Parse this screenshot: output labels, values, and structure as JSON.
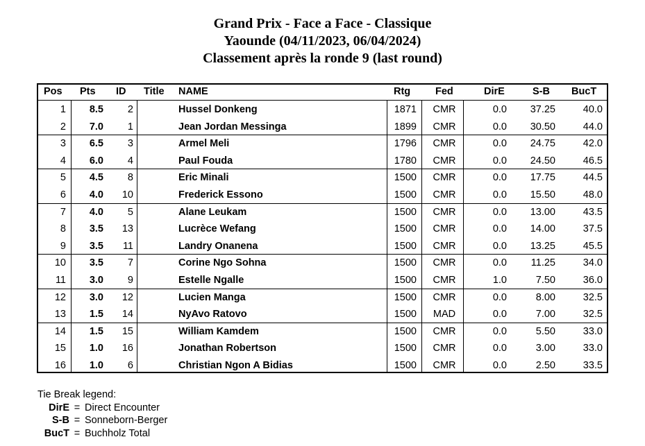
{
  "title_lines": [
    "Grand Prix - Face a Face - Classique",
    "Yaounde (04/11/2023, 06/04/2024)",
    "Classement après la ronde 9 (last round)"
  ],
  "table": {
    "headers": {
      "pos": "Pos",
      "pts": "Pts",
      "id": "ID",
      "title": "Title",
      "name": "NAME",
      "rtg": "Rtg",
      "fed": "Fed",
      "dire": "DirE",
      "sb": "S-B",
      "buct": "BucT"
    },
    "rows": [
      {
        "pos": "1",
        "pts": "8.5",
        "id": "2",
        "title": "",
        "name": "Hussel Donkeng",
        "rtg": "1871",
        "fed": "CMR",
        "dire": "0.0",
        "sb": "37.25",
        "buct": "40.0"
      },
      {
        "pos": "2",
        "pts": "7.0",
        "id": "1",
        "title": "",
        "name": "Jean Jordan Messinga",
        "rtg": "1899",
        "fed": "CMR",
        "dire": "0.0",
        "sb": "30.50",
        "buct": "44.0"
      },
      {
        "pos": "3",
        "pts": "6.5",
        "id": "3",
        "title": "",
        "name": "Armel Meli",
        "rtg": "1796",
        "fed": "CMR",
        "dire": "0.0",
        "sb": "24.75",
        "buct": "42.0"
      },
      {
        "pos": "4",
        "pts": "6.0",
        "id": "4",
        "title": "",
        "name": "Paul Fouda",
        "rtg": "1780",
        "fed": "CMR",
        "dire": "0.0",
        "sb": "24.50",
        "buct": "46.5"
      },
      {
        "pos": "5",
        "pts": "4.5",
        "id": "8",
        "title": "",
        "name": "Eric Minali",
        "rtg": "1500",
        "fed": "CMR",
        "dire": "0.0",
        "sb": "17.75",
        "buct": "44.5"
      },
      {
        "pos": "6",
        "pts": "4.0",
        "id": "10",
        "title": "",
        "name": "Frederick Essono",
        "rtg": "1500",
        "fed": "CMR",
        "dire": "0.0",
        "sb": "15.50",
        "buct": "48.0"
      },
      {
        "pos": "7",
        "pts": "4.0",
        "id": "5",
        "title": "",
        "name": "Alane Leukam",
        "rtg": "1500",
        "fed": "CMR",
        "dire": "0.0",
        "sb": "13.00",
        "buct": "43.5"
      },
      {
        "pos": "8",
        "pts": "3.5",
        "id": "13",
        "title": "",
        "name": "Lucrèce Wefang",
        "rtg": "1500",
        "fed": "CMR",
        "dire": "0.0",
        "sb": "14.00",
        "buct": "37.5"
      },
      {
        "pos": "9",
        "pts": "3.5",
        "id": "11",
        "title": "",
        "name": "Landry Onanena",
        "rtg": "1500",
        "fed": "CMR",
        "dire": "0.0",
        "sb": "13.25",
        "buct": "45.5"
      },
      {
        "pos": "10",
        "pts": "3.5",
        "id": "7",
        "title": "",
        "name": "Corine Ngo Sohna",
        "rtg": "1500",
        "fed": "CMR",
        "dire": "0.0",
        "sb": "11.25",
        "buct": "34.0"
      },
      {
        "pos": "11",
        "pts": "3.0",
        "id": "9",
        "title": "",
        "name": "Estelle Ngalle",
        "rtg": "1500",
        "fed": "CMR",
        "dire": "1.0",
        "sb": "7.50",
        "buct": "36.0"
      },
      {
        "pos": "12",
        "pts": "3.0",
        "id": "12",
        "title": "",
        "name": "Lucien Manga",
        "rtg": "1500",
        "fed": "CMR",
        "dire": "0.0",
        "sb": "8.00",
        "buct": "32.5"
      },
      {
        "pos": "13",
        "pts": "1.5",
        "id": "14",
        "title": "",
        "name": "NyAvo Ratovo",
        "rtg": "1500",
        "fed": "MAD",
        "dire": "0.0",
        "sb": "7.00",
        "buct": "32.5"
      },
      {
        "pos": "14",
        "pts": "1.5",
        "id": "15",
        "title": "",
        "name": "William Kamdem",
        "rtg": "1500",
        "fed": "CMR",
        "dire": "0.0",
        "sb": "5.50",
        "buct": "33.0"
      },
      {
        "pos": "15",
        "pts": "1.0",
        "id": "16",
        "title": "",
        "name": "Jonathan Robertson",
        "rtg": "1500",
        "fed": "CMR",
        "dire": "0.0",
        "sb": "3.00",
        "buct": "33.0"
      },
      {
        "pos": "16",
        "pts": "1.0",
        "id": "6",
        "title": "",
        "name": "Christian Ngon A Bidias",
        "rtg": "1500",
        "fed": "CMR",
        "dire": "0.0",
        "sb": "2.50",
        "buct": "33.5"
      }
    ],
    "groups_end_after": [
      2,
      4,
      6,
      9,
      11,
      13
    ]
  },
  "legend": {
    "heading": "Tie Break legend:",
    "items": [
      {
        "abbr": "DirE",
        "eq": "=",
        "desc": "Direct Encounter"
      },
      {
        "abbr": "S-B",
        "eq": "=",
        "desc": "Sonneborn-Berger"
      },
      {
        "abbr": "BucT",
        "eq": "=",
        "desc": "Buchholz Total"
      }
    ]
  }
}
